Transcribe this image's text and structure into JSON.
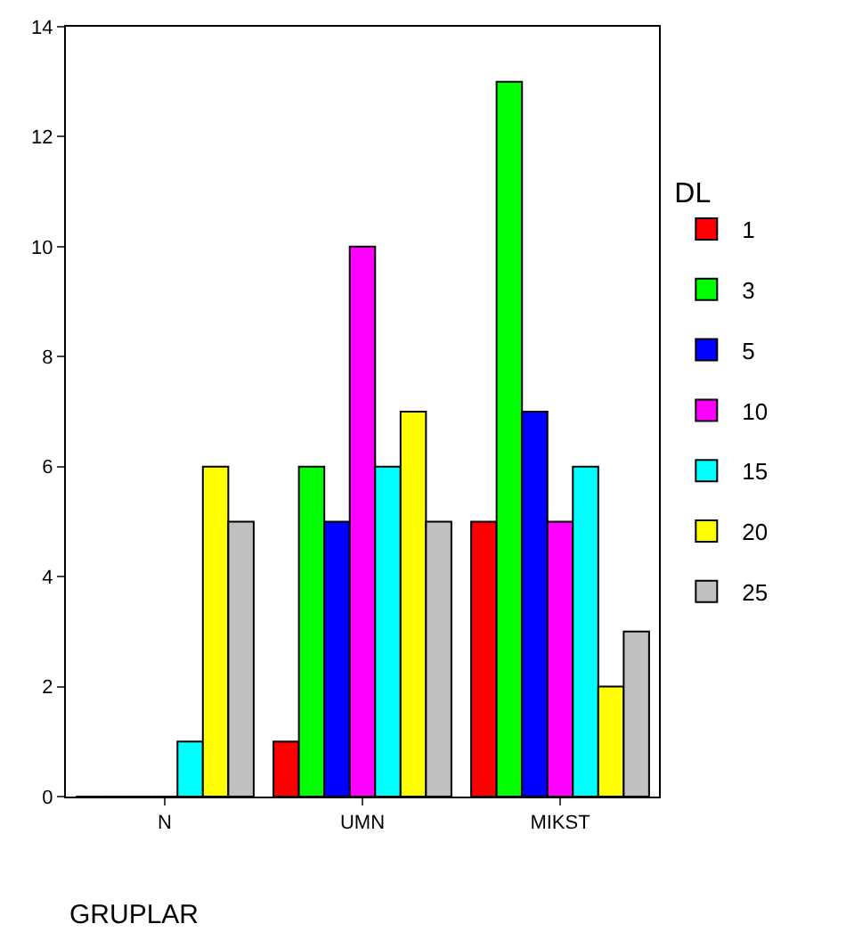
{
  "chart_data": {
    "type": "bar",
    "xlabel": "GRUPLAR",
    "legend_title": "DL",
    "categories": [
      "N",
      "UMN",
      "MIKST"
    ],
    "series": [
      {
        "name": "1",
        "color": "#ff0000",
        "values": [
          0,
          1,
          5
        ]
      },
      {
        "name": "3",
        "color": "#00ff00",
        "values": [
          0,
          6,
          13
        ]
      },
      {
        "name": "5",
        "color": "#0000ff",
        "values": [
          0,
          5,
          7
        ]
      },
      {
        "name": "10",
        "color": "#ff00ff",
        "values": [
          0,
          10,
          5
        ]
      },
      {
        "name": "15",
        "color": "#00ffff",
        "values": [
          1,
          6,
          6
        ]
      },
      {
        "name": "20",
        "color": "#ffff00",
        "values": [
          6,
          7,
          2
        ]
      },
      {
        "name": "25",
        "color": "#c0c0c0",
        "values": [
          5,
          5,
          3
        ]
      }
    ],
    "ylim": [
      0,
      14
    ],
    "yticks": [
      0,
      2,
      4,
      6,
      8,
      10,
      12,
      14
    ],
    "grid": false,
    "legend": "right"
  }
}
